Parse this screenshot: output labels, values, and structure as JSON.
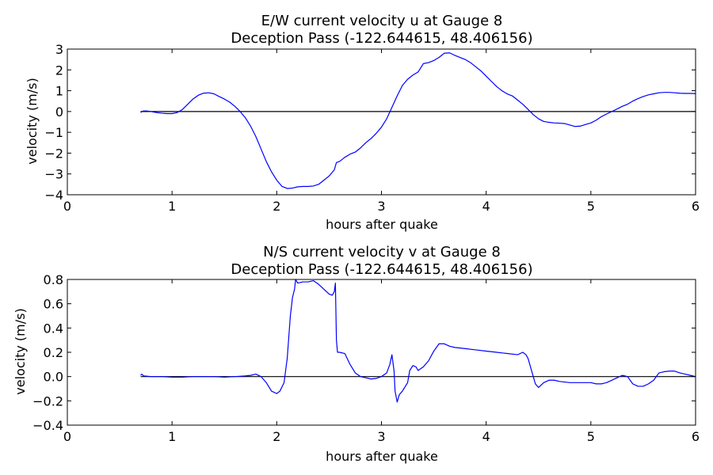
{
  "chart_data": [
    {
      "type": "line",
      "title": "E/W current velocity u at Gauge 8",
      "subtitle": "Deception Pass  (-122.644615, 48.406156)",
      "xlabel": "hours after quake",
      "ylabel": "velocity (m/s)",
      "xlim": [
        0,
        6
      ],
      "ylim": [
        -4,
        3
      ],
      "xticks": [
        0,
        1,
        2,
        3,
        4,
        5,
        6
      ],
      "yticks": [
        -4,
        -3,
        -2,
        -1,
        0,
        1,
        2,
        3
      ],
      "ytick_labels": [
        "−4",
        "−3",
        "−2",
        "−1",
        "0",
        "1",
        "2",
        "3"
      ],
      "grid": false,
      "reference_line_y": 0,
      "series_color": "#0000ff",
      "series": [
        {
          "x": [
            0.7,
            0.72,
            0.75,
            0.8,
            0.85,
            0.9,
            0.95,
            1.0,
            1.05,
            1.1,
            1.15,
            1.2,
            1.25,
            1.3,
            1.35,
            1.4,
            1.45,
            1.5,
            1.55,
            1.6,
            1.65,
            1.7,
            1.75,
            1.8,
            1.85,
            1.9,
            1.95,
            2.0,
            2.05,
            2.1,
            2.15,
            2.2,
            2.25,
            2.3,
            2.35,
            2.4,
            2.45,
            2.5,
            2.55,
            2.57,
            2.6,
            2.65,
            2.7,
            2.75,
            2.8,
            2.85,
            2.9,
            2.95,
            3.0,
            3.05,
            3.1,
            3.15,
            3.2,
            3.25,
            3.3,
            3.35,
            3.4,
            3.45,
            3.5,
            3.55,
            3.6,
            3.65,
            3.7,
            3.75,
            3.8,
            3.85,
            3.9,
            3.95,
            4.0,
            4.05,
            4.1,
            4.15,
            4.2,
            4.25,
            4.3,
            4.35,
            4.4,
            4.45,
            4.5,
            4.55,
            4.6,
            4.65,
            4.7,
            4.75,
            4.8,
            4.85,
            4.9,
            4.95,
            5.0,
            5.05,
            5.1,
            5.15,
            5.2,
            5.25,
            5.3,
            5.35,
            5.4,
            5.45,
            5.5,
            5.55,
            5.6,
            5.65,
            5.7,
            5.75,
            5.8,
            5.85,
            5.9,
            5.95,
            6.0
          ],
          "y": [
            -0.05,
            0.02,
            0.03,
            0.0,
            -0.05,
            -0.08,
            -0.1,
            -0.1,
            -0.05,
            0.1,
            0.35,
            0.6,
            0.78,
            0.88,
            0.9,
            0.85,
            0.72,
            0.6,
            0.45,
            0.25,
            0.0,
            -0.3,
            -0.7,
            -1.2,
            -1.8,
            -2.4,
            -2.9,
            -3.3,
            -3.6,
            -3.7,
            -3.68,
            -3.62,
            -3.6,
            -3.6,
            -3.58,
            -3.5,
            -3.3,
            -3.1,
            -2.8,
            -2.45,
            -2.4,
            -2.2,
            -2.05,
            -1.95,
            -1.75,
            -1.5,
            -1.3,
            -1.05,
            -0.75,
            -0.35,
            0.2,
            0.75,
            1.25,
            1.55,
            1.75,
            1.9,
            2.3,
            2.35,
            2.45,
            2.6,
            2.8,
            2.82,
            2.7,
            2.6,
            2.5,
            2.35,
            2.15,
            1.95,
            1.7,
            1.45,
            1.2,
            1.0,
            0.85,
            0.75,
            0.55,
            0.35,
            0.1,
            -0.15,
            -0.35,
            -0.48,
            -0.52,
            -0.55,
            -0.56,
            -0.58,
            -0.65,
            -0.72,
            -0.7,
            -0.62,
            -0.55,
            -0.42,
            -0.25,
            -0.12,
            0.0,
            0.12,
            0.25,
            0.35,
            0.5,
            0.62,
            0.72,
            0.8,
            0.85,
            0.9,
            0.92,
            0.92,
            0.9,
            0.88,
            0.87,
            0.87,
            0.86
          ]
        }
      ]
    },
    {
      "type": "line",
      "title": "N/S current velocity v at Gauge 8",
      "subtitle": "Deception Pass  (-122.644615, 48.406156)",
      "xlabel": "hours after quake",
      "ylabel": "velocity (m/s)",
      "xlim": [
        0,
        6
      ],
      "ylim": [
        -0.4,
        0.8
      ],
      "xticks": [
        0,
        1,
        2,
        3,
        4,
        5,
        6
      ],
      "yticks": [
        -0.4,
        -0.2,
        0.0,
        0.2,
        0.4,
        0.6,
        0.8
      ],
      "ytick_labels": [
        "−0.4",
        "−0.2",
        "0.0",
        "0.2",
        "0.4",
        "0.6",
        "0.8"
      ],
      "grid": false,
      "reference_line_y": 0,
      "series_color": "#0000ff",
      "series": [
        {
          "x": [
            0.7,
            0.71,
            0.73,
            0.8,
            0.9,
            1.0,
            1.1,
            1.2,
            1.3,
            1.4,
            1.5,
            1.6,
            1.7,
            1.75,
            1.8,
            1.85,
            1.9,
            1.95,
            2.0,
            2.03,
            2.07,
            2.1,
            2.13,
            2.15,
            2.17,
            2.18,
            2.2,
            2.25,
            2.3,
            2.35,
            2.4,
            2.45,
            2.5,
            2.53,
            2.55,
            2.56,
            2.57,
            2.58,
            2.6,
            2.65,
            2.7,
            2.75,
            2.8,
            2.85,
            2.9,
            2.95,
            3.0,
            3.05,
            3.08,
            3.1,
            3.12,
            3.13,
            3.15,
            3.17,
            3.2,
            3.25,
            3.27,
            3.3,
            3.33,
            3.35,
            3.4,
            3.45,
            3.5,
            3.55,
            3.6,
            3.65,
            3.7,
            3.8,
            3.9,
            4.0,
            4.1,
            4.2,
            4.3,
            4.35,
            4.38,
            4.4,
            4.45,
            4.47,
            4.5,
            4.55,
            4.6,
            4.65,
            4.7,
            4.8,
            4.9,
            5.0,
            5.05,
            5.1,
            5.15,
            5.2,
            5.25,
            5.3,
            5.35,
            5.4,
            5.45,
            5.5,
            5.55,
            5.6,
            5.65,
            5.7,
            5.75,
            5.8,
            5.85,
            5.9,
            5.95,
            6.0
          ],
          "y": [
            0.01,
            0.02,
            0.005,
            0.0,
            0.0,
            -0.005,
            -0.005,
            0.0,
            0.0,
            0.0,
            -0.005,
            0.0,
            0.005,
            0.01,
            0.02,
            0.0,
            -0.05,
            -0.12,
            -0.14,
            -0.12,
            -0.05,
            0.15,
            0.5,
            0.65,
            0.72,
            0.8,
            0.77,
            0.78,
            0.78,
            0.79,
            0.76,
            0.72,
            0.68,
            0.67,
            0.7,
            0.77,
            0.3,
            0.2,
            0.2,
            0.19,
            0.1,
            0.03,
            0.0,
            -0.01,
            -0.02,
            -0.015,
            0.0,
            0.03,
            0.1,
            0.18,
            0.05,
            -0.12,
            -0.21,
            -0.15,
            -0.12,
            -0.05,
            0.05,
            0.09,
            0.08,
            0.05,
            0.08,
            0.13,
            0.21,
            0.27,
            0.27,
            0.25,
            0.24,
            0.23,
            0.22,
            0.21,
            0.2,
            0.19,
            0.18,
            0.2,
            0.18,
            0.15,
            0.0,
            -0.06,
            -0.09,
            -0.05,
            -0.03,
            -0.03,
            -0.04,
            -0.05,
            -0.05,
            -0.05,
            -0.06,
            -0.06,
            -0.05,
            -0.03,
            -0.01,
            0.01,
            0.0,
            -0.06,
            -0.08,
            -0.08,
            -0.06,
            -0.03,
            0.03,
            0.04,
            0.045,
            0.045,
            0.03,
            0.02,
            0.01,
            0.0
          ]
        }
      ]
    }
  ]
}
